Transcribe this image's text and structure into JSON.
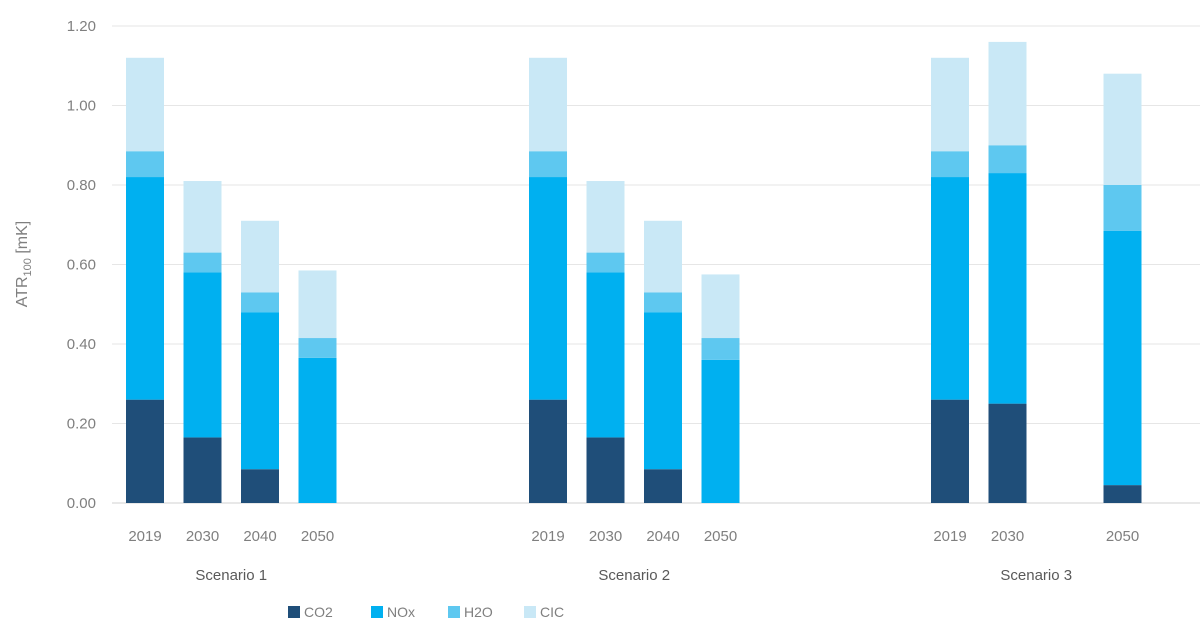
{
  "chart_data": {
    "type": "bar",
    "stacked": true,
    "title": "",
    "ylabel": "ATR",
    "ylabel_subscript": "100",
    "ylabel_suffix": " [mK]",
    "ylim": [
      0,
      1.2
    ],
    "yticks": [
      "0.00",
      "0.20",
      "0.40",
      "0.60",
      "0.80",
      "1.00",
      "1.20"
    ],
    "grid": true,
    "legend_position": "bottom",
    "colors": {
      "CO2": "#1f4e79",
      "NOx": "#00b0f0",
      "H2O": "#5ec8f0",
      "CIC": "#c9e8f6"
    },
    "groups": [
      {
        "name": "Scenario 1",
        "bars": [
          {
            "year": "2019",
            "CO2": 0.26,
            "NOx": 0.56,
            "H2O": 0.065,
            "CIC": 0.235
          },
          {
            "year": "2030",
            "CO2": 0.165,
            "NOx": 0.415,
            "H2O": 0.05,
            "CIC": 0.18
          },
          {
            "year": "2040",
            "CO2": 0.085,
            "NOx": 0.395,
            "H2O": 0.05,
            "CIC": 0.18
          },
          {
            "year": "2050",
            "CO2": 0.0,
            "NOx": 0.365,
            "H2O": 0.05,
            "CIC": 0.17
          }
        ]
      },
      {
        "name": "Scenario 2",
        "bars": [
          {
            "year": "2019",
            "CO2": 0.26,
            "NOx": 0.56,
            "H2O": 0.065,
            "CIC": 0.235
          },
          {
            "year": "2030",
            "CO2": 0.165,
            "NOx": 0.415,
            "H2O": 0.05,
            "CIC": 0.18
          },
          {
            "year": "2040",
            "CO2": 0.085,
            "NOx": 0.395,
            "H2O": 0.05,
            "CIC": 0.18
          },
          {
            "year": "2050",
            "CO2": 0.0,
            "NOx": 0.36,
            "H2O": 0.055,
            "CIC": 0.16
          }
        ]
      },
      {
        "name": "Scenario 3",
        "bars": [
          {
            "year": "2019",
            "CO2": 0.26,
            "NOx": 0.56,
            "H2O": 0.065,
            "CIC": 0.235
          },
          {
            "year": "2030",
            "CO2": 0.25,
            "NOx": 0.58,
            "H2O": 0.07,
            "CIC": 0.26
          },
          {
            "year": "",
            "CO2": 0,
            "NOx": 0,
            "H2O": 0,
            "CIC": 0
          },
          {
            "year": "2050",
            "CO2": 0.045,
            "NOx": 0.64,
            "H2O": 0.115,
            "CIC": 0.28
          }
        ]
      }
    ],
    "series_order": [
      "CO2",
      "NOx",
      "H2O",
      "CIC"
    ]
  }
}
